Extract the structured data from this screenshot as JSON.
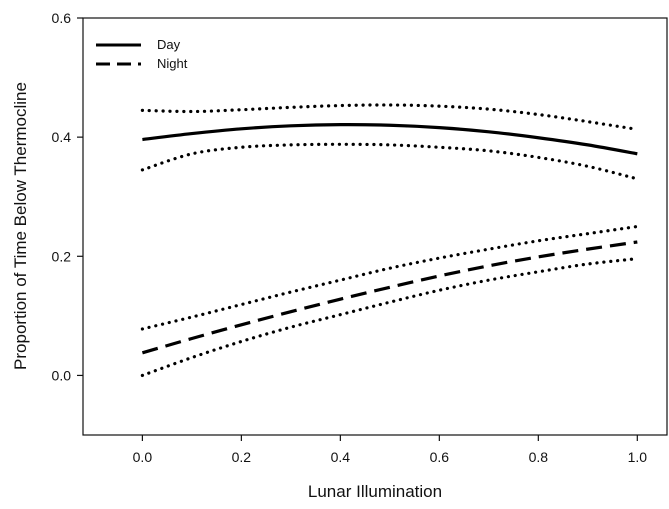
{
  "chart_data": {
    "type": "line",
    "xlabel": "Lunar Illumination",
    "ylabel": "Proportion of Time Below Thermocline",
    "xlim": [
      -0.12,
      1.06
    ],
    "ylim": [
      -0.1,
      0.6
    ],
    "xticks": [
      0.0,
      0.2,
      0.4,
      0.6,
      0.8,
      1.0
    ],
    "xtick_labels": [
      "0.0",
      "0.2",
      "0.4",
      "0.6",
      "0.8",
      "1.0"
    ],
    "yticks": [
      0.0,
      0.2,
      0.4,
      0.6
    ],
    "ytick_labels": [
      "0.0",
      "0.2",
      "0.4",
      "0.6"
    ],
    "grid": false,
    "legend_position": "top-left",
    "x": [
      0.0,
      0.1,
      0.2,
      0.3,
      0.4,
      0.5,
      0.6,
      0.7,
      0.8,
      0.9,
      1.0
    ],
    "series": [
      {
        "name": "Day",
        "style": "solid",
        "values": [
          0.396,
          0.406,
          0.414,
          0.419,
          0.421,
          0.42,
          0.416,
          0.409,
          0.399,
          0.387,
          0.372
        ]
      },
      {
        "name": "Night",
        "style": "dashed",
        "values": [
          0.038,
          0.062,
          0.085,
          0.107,
          0.128,
          0.148,
          0.167,
          0.184,
          0.199,
          0.212,
          0.224
        ]
      }
    ],
    "confidence_bands": [
      {
        "series": "Day",
        "style": "dotted",
        "upper": [
          0.445,
          0.443,
          0.446,
          0.45,
          0.453,
          0.454,
          0.452,
          0.447,
          0.438,
          0.426,
          0.413
        ],
        "lower": [
          0.345,
          0.372,
          0.383,
          0.387,
          0.388,
          0.387,
          0.383,
          0.377,
          0.366,
          0.351,
          0.33
        ]
      },
      {
        "series": "Night",
        "style": "dotted",
        "upper": [
          0.078,
          0.098,
          0.119,
          0.14,
          0.16,
          0.18,
          0.197,
          0.212,
          0.226,
          0.238,
          0.25
        ],
        "lower": [
          0.0,
          0.03,
          0.057,
          0.081,
          0.102,
          0.123,
          0.143,
          0.16,
          0.174,
          0.187,
          0.196
        ]
      }
    ]
  }
}
